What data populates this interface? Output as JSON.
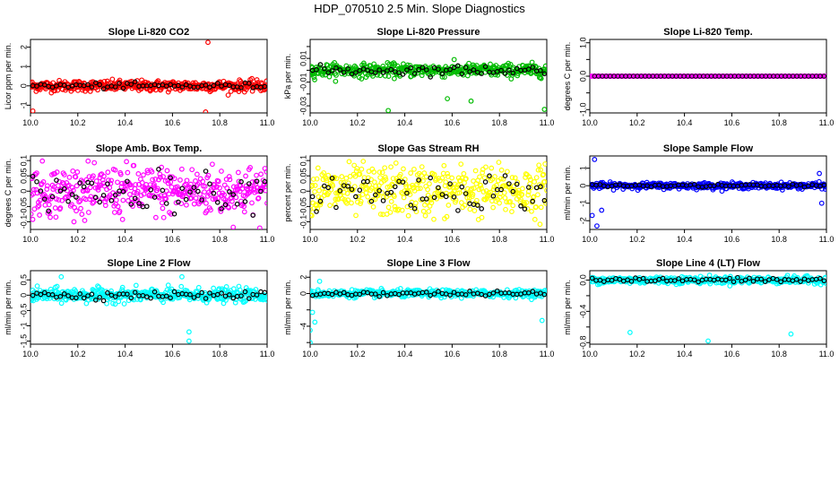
{
  "title": "HDP_070510  2.5 Min. Slope Diagnostics",
  "chart_data": [
    {
      "type": "scatter",
      "title": "Slope Li-820 CO2",
      "ylabel": "Licor ppm per min.",
      "xlim": [
        10.0,
        11.0
      ],
      "ylim": [
        -1.4,
        2.4
      ],
      "yticks": [
        -1,
        0,
        1,
        2
      ],
      "xticks": [
        10.0,
        10.2,
        10.4,
        10.6,
        10.8,
        11.0
      ],
      "color": "#ff0000",
      "spread": 0.25,
      "outliers": [
        [
          10.75,
          2.25
        ],
        [
          10.74,
          -1.35
        ],
        [
          10.01,
          -1.3
        ]
      ],
      "overlay_spread": 0.15
    },
    {
      "type": "scatter",
      "title": "Slope Li-820 Pressure",
      "ylabel": "kPa per min.",
      "xlim": [
        10.0,
        11.0
      ],
      "ylim": [
        -0.036,
        0.026
      ],
      "yticks": [
        -0.03,
        -0.02,
        -0.01,
        0.0,
        0.01,
        0.02
      ],
      "ytick_labels": [
        "-0.03",
        "",
        "-0.01",
        "",
        "0.01",
        ""
      ],
      "xticks": [
        10.0,
        10.2,
        10.4,
        10.6,
        10.8,
        11.0
      ],
      "color": "#00bb00",
      "spread": 0.005,
      "outliers": [
        [
          10.33,
          -0.034
        ],
        [
          10.99,
          -0.033
        ],
        [
          10.68,
          -0.026
        ],
        [
          10.58,
          -0.024
        ]
      ],
      "overlay_spread": 0.004
    },
    {
      "type": "scatter",
      "title": "Slope Li-820 Temp.",
      "ylabel": "degrees C per min.",
      "xlim": [
        10.0,
        11.0
      ],
      "ylim": [
        -1.1,
        1.1
      ],
      "yticks": [
        -1.0,
        -0.5,
        0.0,
        0.5,
        1.0
      ],
      "ytick_labels": [
        "-1.0",
        "",
        "0.0",
        "",
        "1.0"
      ],
      "xticks": [
        10.0,
        10.2,
        10.4,
        10.6,
        10.8,
        11.0
      ],
      "color": "#ff00ff",
      "spread": 0,
      "outliers": [],
      "overlay_spread": 0
    },
    {
      "type": "scatter",
      "title": "Slope Amb. Box Temp.",
      "ylabel": "degrees C per min.",
      "xlim": [
        10.0,
        11.0
      ],
      "ylim": [
        -0.125,
        0.115
      ],
      "yticks": [
        -0.1,
        -0.05,
        0.0,
        0.05,
        0.1
      ],
      "xticks": [
        10.0,
        10.2,
        10.4,
        10.6,
        10.8,
        11.0
      ],
      "color": "#ff00ff",
      "spread": 0.075,
      "outliers": [],
      "overlay_spread": 0.06
    },
    {
      "type": "scatter",
      "title": "Slope Gas Stream RH",
      "ylabel": "percent per min.",
      "xlim": [
        10.0,
        11.0
      ],
      "ylim": [
        -0.125,
        0.115
      ],
      "yticks": [
        -0.1,
        -0.05,
        0.0,
        0.05,
        0.1
      ],
      "xticks": [
        10.0,
        10.2,
        10.4,
        10.6,
        10.8,
        11.0
      ],
      "color": "#ffff00",
      "spread": 0.075,
      "outliers": [],
      "overlay_spread": 0.06
    },
    {
      "type": "scatter",
      "title": "Slope Sample Flow",
      "ylabel": "ml/min per min.",
      "xlim": [
        10.0,
        11.0
      ],
      "ylim": [
        -2.5,
        1.7
      ],
      "yticks": [
        -2,
        -1,
        0,
        1
      ],
      "xticks": [
        10.0,
        10.2,
        10.4,
        10.6,
        10.8,
        11.0
      ],
      "color": "#0000ff",
      "spread": 0.15,
      "outliers": [
        [
          10.02,
          1.5
        ],
        [
          10.03,
          -2.3
        ],
        [
          10.01,
          -1.7
        ],
        [
          10.05,
          -1.4
        ],
        [
          10.98,
          -1.0
        ],
        [
          10.97,
          0.7
        ]
      ],
      "overlay_spread": 0.08
    },
    {
      "type": "scatter",
      "title": "Slope Line 2 Flow",
      "ylabel": "ml/min per min.",
      "xlim": [
        10.0,
        11.0
      ],
      "ylim": [
        -1.6,
        0.8
      ],
      "yticks": [
        -1.5,
        -1.0,
        -0.5,
        0.0,
        0.5
      ],
      "xticks": [
        10.0,
        10.2,
        10.4,
        10.6,
        10.8,
        11.0
      ],
      "color": "#00ffff",
      "spread": 0.2,
      "outliers": [
        [
          10.67,
          -1.5
        ],
        [
          10.67,
          -1.2
        ],
        [
          10.64,
          0.6
        ],
        [
          10.13,
          0.6
        ]
      ],
      "overlay_spread": 0.12
    },
    {
      "type": "scatter",
      "title": "Slope Line 3 Flow",
      "ylabel": "ml/min per min.",
      "xlim": [
        10.0,
        11.0
      ],
      "ylim": [
        -6.2,
        2.8
      ],
      "yticks": [
        -6,
        -4,
        -2,
        0,
        2
      ],
      "ytick_labels": [
        "",
        "-4",
        "",
        "0",
        "2"
      ],
      "xticks": [
        10.0,
        10.2,
        10.4,
        10.6,
        10.8,
        11.0
      ],
      "color": "#00ffff",
      "spread": 0.4,
      "outliers": [
        [
          10.0,
          -6.0
        ],
        [
          10.0,
          -4.5
        ],
        [
          10.02,
          -3.5
        ],
        [
          10.01,
          -2.3
        ],
        [
          10.98,
          -3.3
        ],
        [
          10.04,
          1.5
        ]
      ],
      "overlay_spread": 0.3
    },
    {
      "type": "scatter",
      "title": "Slope Line 4 (LT) Flow",
      "ylabel": "ml/min per min.",
      "xlim": [
        10.0,
        11.0
      ],
      "ylim": [
        -0.82,
        0.12
      ],
      "yticks": [
        -0.8,
        -0.6,
        -0.4,
        -0.2,
        0.0
      ],
      "ytick_labels": [
        "-0.8",
        "",
        "-0.4",
        "",
        "0.0"
      ],
      "xticks": [
        10.0,
        10.2,
        10.4,
        10.6,
        10.8,
        11.0
      ],
      "color": "#00ffff",
      "spread": 0.04,
      "outliers": [
        [
          10.17,
          -0.67
        ],
        [
          10.5,
          -0.78
        ],
        [
          10.85,
          -0.69
        ]
      ],
      "overlay_spread": 0.03
    }
  ]
}
